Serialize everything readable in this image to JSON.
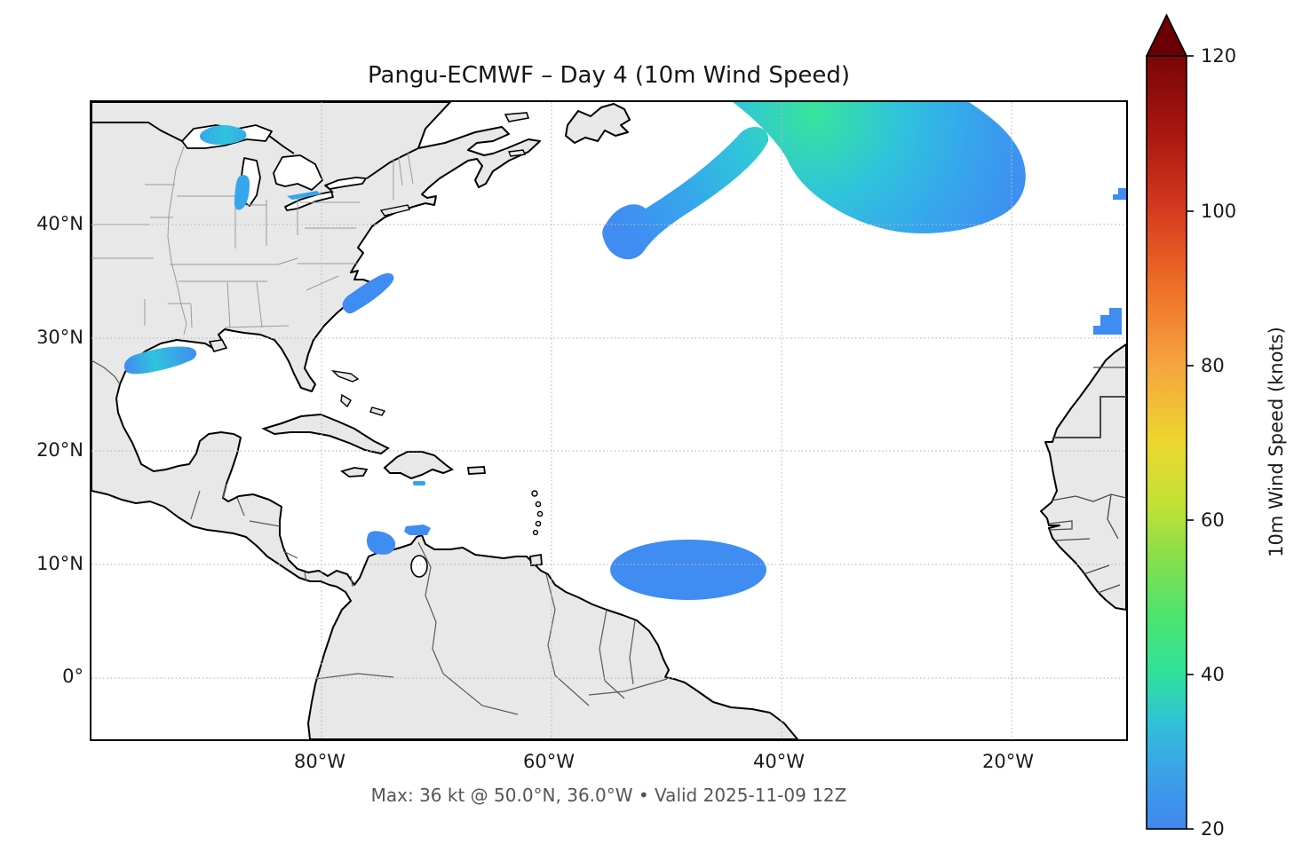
{
  "title": "Pangu-ECMWF – Day 4 (10m Wind Speed)",
  "caption": "Max: 36 kt @ 50.0°N, 36.0°W • Valid 2025-11-09 12Z",
  "axes": {
    "xticks": [
      "80°W",
      "60°W",
      "40°W",
      "20°W"
    ],
    "yticks": [
      "40°N",
      "30°N",
      "20°N",
      "10°N",
      "0°"
    ]
  },
  "colorbar": {
    "label": "10m Wind Speed (knots)",
    "ticks": [
      "20",
      "40",
      "60",
      "80",
      "100",
      "120"
    ],
    "min": 20,
    "max": 120,
    "extend": "max",
    "arrow_color": "#6B0004",
    "gradient": [
      {
        "v": 20,
        "color": "#3F87EE"
      },
      {
        "v": 28,
        "color": "#3AA5E6"
      },
      {
        "v": 34,
        "color": "#30C2D6"
      },
      {
        "v": 40,
        "color": "#2FE19B"
      },
      {
        "v": 48,
        "color": "#4FE46C"
      },
      {
        "v": 56,
        "color": "#8FDE48"
      },
      {
        "v": 62,
        "color": "#C3E135"
      },
      {
        "v": 70,
        "color": "#EDD72E"
      },
      {
        "v": 80,
        "color": "#F6A440"
      },
      {
        "v": 90,
        "color": "#EF7028"
      },
      {
        "v": 100,
        "color": "#D63B1F"
      },
      {
        "v": 110,
        "color": "#A91710"
      },
      {
        "v": 120,
        "color": "#7A0608"
      }
    ]
  },
  "palette": {
    "land": "#E8E8E8",
    "coast": "#000000",
    "state_border": "#9A9A9A",
    "country_border": "#5A5A5A",
    "grid": "#BBBBBB",
    "ocean": "#FFFFFF",
    "wind_blue": "#3F8CF2",
    "wind_mid": "#36A6EC",
    "wind_cyan": "#2FC3DC",
    "wind_green": "#38E49C",
    "caption_text": "#555555"
  },
  "chart_data": {
    "type": "heatmap",
    "title": "Pangu-ECMWF – Day 4 (10m Wind Speed)",
    "model": "Pangu-ECMWF",
    "lead": "Day 4",
    "variable": "10m Wind Speed",
    "units": "knots",
    "valid": "2025-11-09 12Z",
    "projection": "PlateCarree (lon/lat map, Atlantic basin)",
    "extent": {
      "lon_west_deg": 100,
      "lon_east_deg": 10,
      "lat_south_deg": -5.4,
      "lat_north_deg": 50.8
    },
    "xticks_deg_w": [
      80,
      60,
      40,
      20
    ],
    "yticks_deg_n": [
      40,
      30,
      20,
      10,
      0
    ],
    "grid": true,
    "colorbar_range_kt": [
      20,
      120
    ],
    "colorbar_extend": "max",
    "shading_threshold_kt": 20,
    "max_wind": {
      "value_kt": 36,
      "lat": "50.0°N",
      "lon": "36.0°W"
    },
    "wind_features": [
      {
        "name": "north-atlantic-storm",
        "center": "48°N 35°W",
        "peak_kt": 36,
        "extent": "54°W–11°W, 38°N–51°N",
        "note": "large blob with green core at top edge, SW arm to 40°N"
      },
      {
        "name": "subtropical-atlantic-oval",
        "center": "10°N 47°W",
        "peak_kt": 24,
        "extent": "55°W–41°W, 7.5°N–12.5°N"
      },
      {
        "name": "gulf-of-mexico-streak",
        "center": "28°N 96°W",
        "peak_kt": 27
      },
      {
        "name": "cape-hatteras-patch",
        "center": "33.5°N 73°W",
        "peak_kt": 23
      },
      {
        "name": "morocco-coast-patch",
        "center": "31°N 11°W",
        "peak_kt": 22
      },
      {
        "name": "right-edge-nub",
        "center": "43°N 10°W",
        "peak_kt": 21
      },
      {
        "name": "guajira-caribbean-patches",
        "center": "12°N 72°W",
        "peak_kt": 24
      },
      {
        "name": "hispaniola-south-dash",
        "center": "17.5°N 71.5°W",
        "peak_kt": 21
      },
      {
        "name": "lake-superior-patch",
        "center": "47.5°N 88°W",
        "peak_kt": 26
      },
      {
        "name": "lake-michigan-patch",
        "center": "44°N 87°W",
        "peak_kt": 24
      },
      {
        "name": "lake-erie-dash",
        "center": "42.5°N 81°W",
        "peak_kt": 22
      }
    ]
  }
}
